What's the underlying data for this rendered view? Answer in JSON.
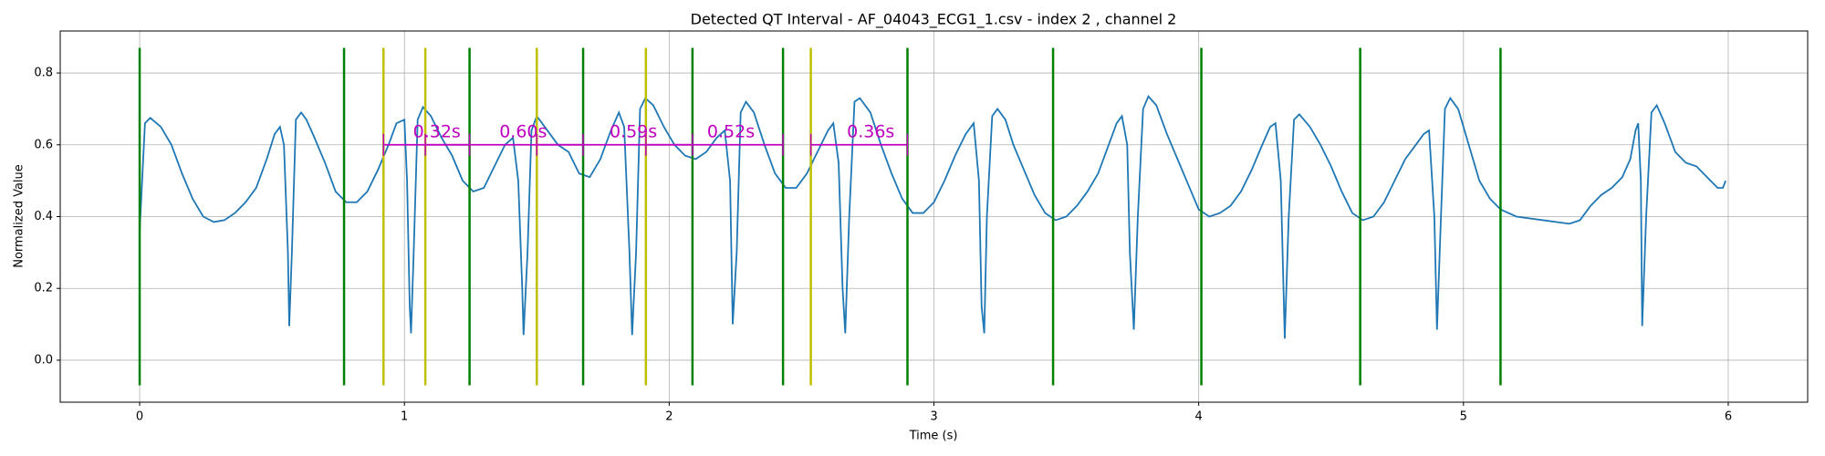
{
  "chart_data": {
    "type": "line",
    "title": "Detected QT Interval - AF_04043_ECG1_1.csv - index 2 , channel 2",
    "x_label": "Time (s)",
    "y_label": "Normalized Value",
    "xlim": [
      -0.3,
      6.3
    ],
    "ylim": [
      -0.117,
      0.917
    ],
    "xticks": [
      0,
      1,
      2,
      3,
      4,
      5,
      6
    ],
    "yticks": [
      {
        "value": 0,
        "label": "0.0"
      },
      {
        "value": 0.2,
        "label": "0.2"
      },
      {
        "value": 0.4,
        "label": "0.4"
      },
      {
        "value": 0.6,
        "label": "0.6"
      },
      {
        "value": 0.8,
        "label": "0.8"
      }
    ],
    "grid": true,
    "series": [
      {
        "color": "#1f77b4",
        "x": [
          0,
          0.02,
          0.04,
          0.08,
          0.12,
          0.16,
          0.2,
          0.24,
          0.28,
          0.32,
          0.36,
          0.4,
          0.44,
          0.48,
          0.51,
          0.53,
          0.545,
          0.56,
          0.565,
          0.575,
          0.59,
          0.61,
          0.63,
          0.66,
          0.7,
          0.74,
          0.78,
          0.82,
          0.86,
          0.9,
          0.94,
          0.97,
          1.0,
          1.01,
          1.02,
          1.025,
          1.035,
          1.05,
          1.07,
          1.1,
          1.14,
          1.18,
          1.22,
          1.26,
          1.3,
          1.34,
          1.38,
          1.41,
          1.43,
          1.445,
          1.45,
          1.465,
          1.48,
          1.5,
          1.54,
          1.58,
          1.62,
          1.66,
          1.7,
          1.74,
          1.78,
          1.81,
          1.83,
          1.85,
          1.86,
          1.875,
          1.89,
          1.91,
          1.94,
          1.98,
          2.02,
          2.06,
          2.1,
          2.14,
          2.18,
          2.21,
          2.23,
          2.24,
          2.255,
          2.27,
          2.29,
          2.32,
          2.36,
          2.4,
          2.44,
          2.48,
          2.52,
          2.56,
          2.6,
          2.62,
          2.64,
          2.655,
          2.665,
          2.68,
          2.7,
          2.72,
          2.76,
          2.8,
          2.84,
          2.88,
          2.92,
          2.96,
          3.0,
          3.04,
          3.08,
          3.12,
          3.15,
          3.17,
          3.18,
          3.19,
          3.2,
          3.22,
          3.24,
          3.27,
          3.3,
          3.34,
          3.38,
          3.42,
          3.46,
          3.5,
          3.54,
          3.58,
          3.62,
          3.66,
          3.69,
          3.71,
          3.73,
          3.74,
          3.755,
          3.77,
          3.79,
          3.81,
          3.84,
          3.88,
          3.92,
          3.96,
          4.0,
          4.04,
          4.08,
          4.12,
          4.16,
          4.2,
          4.24,
          4.27,
          4.29,
          4.31,
          4.325,
          4.34,
          4.36,
          4.38,
          4.42,
          4.46,
          4.5,
          4.54,
          4.58,
          4.62,
          4.66,
          4.7,
          4.74,
          4.78,
          4.82,
          4.85,
          4.87,
          4.89,
          4.9,
          4.915,
          4.93,
          4.95,
          4.98,
          5.02,
          5.06,
          5.1,
          5.14,
          5.2,
          5.3,
          5.4,
          5.44,
          5.48,
          5.52,
          5.56,
          5.6,
          5.63,
          5.65,
          5.66,
          5.67,
          5.675,
          5.69,
          5.71,
          5.73,
          5.76,
          5.8,
          5.84,
          5.88,
          5.92,
          5.96,
          5.98,
          5.99
        ],
        "values": [
          0.36,
          0.66,
          0.675,
          0.65,
          0.6,
          0.52,
          0.45,
          0.4,
          0.385,
          0.39,
          0.41,
          0.44,
          0.48,
          0.56,
          0.63,
          0.65,
          0.6,
          0.3,
          0.095,
          0.3,
          0.67,
          0.69,
          0.67,
          0.62,
          0.55,
          0.47,
          0.44,
          0.44,
          0.47,
          0.53,
          0.6,
          0.66,
          0.67,
          0.5,
          0.15,
          0.075,
          0.3,
          0.67,
          0.705,
          0.68,
          0.62,
          0.57,
          0.5,
          0.47,
          0.48,
          0.54,
          0.6,
          0.62,
          0.5,
          0.2,
          0.07,
          0.3,
          0.64,
          0.68,
          0.64,
          0.6,
          0.58,
          0.52,
          0.51,
          0.56,
          0.64,
          0.69,
          0.65,
          0.3,
          0.07,
          0.3,
          0.7,
          0.73,
          0.71,
          0.65,
          0.6,
          0.57,
          0.56,
          0.58,
          0.62,
          0.64,
          0.5,
          0.1,
          0.3,
          0.69,
          0.72,
          0.69,
          0.6,
          0.52,
          0.48,
          0.48,
          0.52,
          0.58,
          0.64,
          0.66,
          0.55,
          0.2,
          0.075,
          0.4,
          0.72,
          0.73,
          0.69,
          0.6,
          0.52,
          0.45,
          0.41,
          0.41,
          0.44,
          0.5,
          0.57,
          0.63,
          0.66,
          0.5,
          0.15,
          0.075,
          0.4,
          0.68,
          0.7,
          0.67,
          0.6,
          0.53,
          0.46,
          0.41,
          0.39,
          0.4,
          0.43,
          0.47,
          0.52,
          0.6,
          0.66,
          0.68,
          0.6,
          0.3,
          0.085,
          0.4,
          0.7,
          0.735,
          0.71,
          0.63,
          0.56,
          0.49,
          0.42,
          0.4,
          0.41,
          0.43,
          0.47,
          0.53,
          0.6,
          0.65,
          0.66,
          0.5,
          0.06,
          0.4,
          0.67,
          0.685,
          0.65,
          0.6,
          0.54,
          0.47,
          0.41,
          0.39,
          0.4,
          0.44,
          0.5,
          0.56,
          0.6,
          0.63,
          0.64,
          0.4,
          0.085,
          0.4,
          0.7,
          0.73,
          0.7,
          0.6,
          0.5,
          0.45,
          0.42,
          0.4,
          0.39,
          0.38,
          0.39,
          0.43,
          0.46,
          0.48,
          0.51,
          0.56,
          0.64,
          0.66,
          0.5,
          0.095,
          0.4,
          0.69,
          0.71,
          0.66,
          0.58,
          0.55,
          0.54,
          0.51,
          0.48,
          0.48,
          0.5
        ]
      }
    ],
    "vline_range": [
      -0.07,
      0.87
    ],
    "vlines": [
      {
        "color": "#008000",
        "x": [
          0,
          0.772,
          1.246,
          1.675,
          2.088,
          2.43,
          2.9,
          3.45,
          4.01,
          4.61,
          5.14
        ]
      },
      {
        "color": "#bfbf00",
        "x": [
          0.921,
          1.079,
          1.5,
          1.912,
          2.535
        ]
      }
    ],
    "interval_color": "#bf00bf",
    "intervals": [
      {
        "start": 0.921,
        "end": 1.246,
        "y": 0.6,
        "label": "0.32s"
      },
      {
        "start": 1.079,
        "end": 1.675,
        "y": 0.6,
        "label": "0.60s"
      },
      {
        "start": 1.5,
        "end": 2.088,
        "y": 0.6,
        "label": "0.59s"
      },
      {
        "start": 1.912,
        "end": 2.43,
        "y": 0.6,
        "label": "0.52s"
      },
      {
        "start": 2.535,
        "end": 2.9,
        "y": 0.6,
        "label": "0.36s"
      }
    ]
  }
}
